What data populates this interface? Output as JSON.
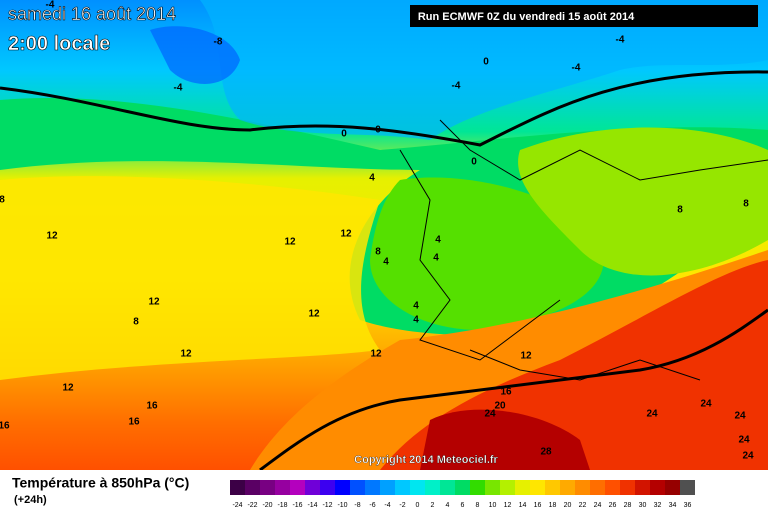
{
  "header": {
    "date": "samedi 16 août 2014",
    "time": "2:00 locale",
    "run": "Run ECMWF 0Z du vendredi 15 août 2014"
  },
  "copyright": "Copyright 2014 Meteociel.fr",
  "map": {
    "contour_labels": [
      "-4",
      "-8",
      "-4",
      "-4",
      "0",
      "-4",
      "-4",
      "0",
      "0",
      "0",
      "4",
      "8",
      "8",
      "4",
      "4",
      "8",
      "4",
      "12",
      "12",
      "12",
      "12",
      "8",
      "12",
      "4",
      "4",
      "12",
      "12",
      "12",
      "12",
      "16",
      "16",
      "16",
      "16",
      "20",
      "24",
      "24",
      "24",
      "24",
      "24",
      "28",
      "24",
      "8"
    ]
  },
  "legend": {
    "title": "Température à 850hPa (°C)",
    "subtitle": "(+24h)",
    "ticks": [
      -24,
      -22,
      -20,
      -18,
      -16,
      -14,
      -12,
      -10,
      -8,
      -6,
      -4,
      -2,
      0,
      2,
      4,
      6,
      8,
      10,
      12,
      14,
      16,
      18,
      20,
      22,
      24,
      26,
      28,
      30,
      32,
      34,
      36
    ],
    "colors": [
      "#3c0046",
      "#5a0064",
      "#780082",
      "#9600a0",
      "#b400be",
      "#7000d8",
      "#3c00f0",
      "#0000ff",
      "#0050ff",
      "#0078ff",
      "#00a0ff",
      "#00c8ff",
      "#00e6f0",
      "#00f0c8",
      "#00e696",
      "#00dc64",
      "#32dc00",
      "#78e600",
      "#b4f000",
      "#e6f000",
      "#ffe600",
      "#ffc800",
      "#ffaa00",
      "#ff8c00",
      "#ff6e00",
      "#ff5000",
      "#f03200",
      "#d21400",
      "#b40000",
      "#960000",
      "#505050"
    ]
  }
}
